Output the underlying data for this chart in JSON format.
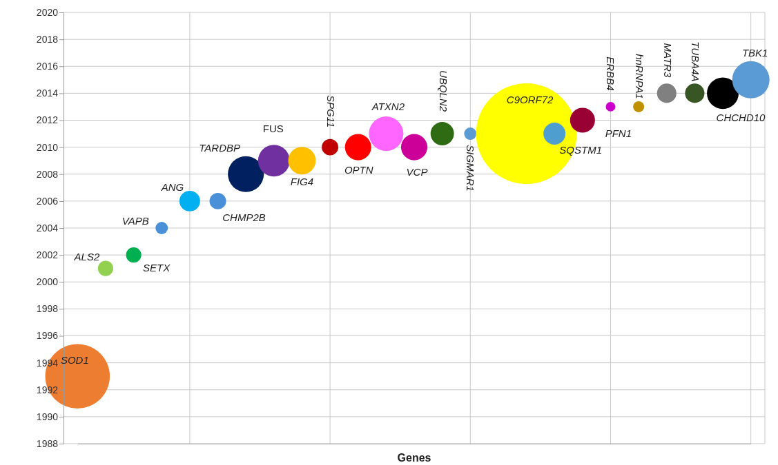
{
  "chart_data": {
    "type": "bubble",
    "xlabel": "Genes",
    "categories": [
      null,
      null,
      null,
      null,
      null,
      null,
      null,
      null,
      null,
      null,
      null,
      null,
      null,
      null,
      null,
      null,
      null,
      null,
      null,
      null,
      null,
      null,
      null,
      null,
      null
    ],
    "series": [
      {
        "name": "SOD1",
        "color": "#ed7d31",
        "values": [
          1993,
          null,
          null,
          null,
          null,
          null,
          null,
          null,
          null,
          null,
          null,
          null,
          null,
          null,
          null,
          null,
          null,
          null,
          null,
          null,
          null,
          null,
          null,
          null,
          null
        ],
        "sizes": [
          0.41,
          null,
          null,
          null,
          null,
          null,
          null,
          null,
          null,
          null,
          null,
          null,
          null,
          null,
          null,
          null,
          null,
          null,
          null,
          null,
          null,
          null,
          null,
          null,
          null
        ]
      },
      {
        "name": "ALS2",
        "color": "#92d050",
        "values": [
          null,
          2001,
          null,
          null,
          null,
          null,
          null,
          null,
          null,
          null,
          null,
          null,
          null,
          null,
          null,
          null,
          null,
          null,
          null,
          null,
          null,
          null,
          null,
          null,
          null
        ],
        "sizes": [
          null,
          0.023,
          null,
          null,
          null,
          null,
          null,
          null,
          null,
          null,
          null,
          null,
          null,
          null,
          null,
          null,
          null,
          null,
          null,
          null,
          null,
          null,
          null,
          null,
          null
        ]
      },
      {
        "name": "SETX",
        "color": "#00b050",
        "values": [
          null,
          null,
          2002,
          null,
          null,
          null,
          null,
          null,
          null,
          null,
          null,
          null,
          null,
          null,
          null,
          null,
          null,
          null,
          null,
          null,
          null,
          null,
          null,
          null,
          null
        ],
        "sizes": [
          null,
          null,
          0.023,
          null,
          null,
          null,
          null,
          null,
          null,
          null,
          null,
          null,
          null,
          null,
          null,
          null,
          null,
          null,
          null,
          null,
          null,
          null,
          null,
          null,
          null
        ]
      },
      {
        "name": "VAPB",
        "color": "#4a90d9",
        "values": [
          null,
          null,
          null,
          2004,
          null,
          null,
          null,
          null,
          null,
          null,
          null,
          null,
          null,
          null,
          null,
          null,
          null,
          null,
          null,
          null,
          null,
          null,
          null,
          null,
          null
        ],
        "sizes": [
          null,
          null,
          null,
          0.015,
          null,
          null,
          null,
          null,
          null,
          null,
          null,
          null,
          null,
          null,
          null,
          null,
          null,
          null,
          null,
          null,
          null,
          null,
          null,
          null,
          null
        ]
      },
      {
        "name": "ANG",
        "color": "#00b0f0",
        "values": [
          null,
          null,
          null,
          null,
          2006,
          null,
          null,
          null,
          null,
          null,
          null,
          null,
          null,
          null,
          null,
          null,
          null,
          null,
          null,
          null,
          null,
          null,
          null,
          null,
          null
        ],
        "sizes": [
          null,
          null,
          null,
          null,
          0.042,
          null,
          null,
          null,
          null,
          null,
          null,
          null,
          null,
          null,
          null,
          null,
          null,
          null,
          null,
          null,
          null,
          null,
          null,
          null,
          null
        ]
      },
      {
        "name": "CHMP2B",
        "color": "#4a90d9",
        "values": [
          null,
          null,
          null,
          null,
          null,
          2006,
          null,
          null,
          null,
          null,
          null,
          null,
          null,
          null,
          null,
          null,
          null,
          null,
          null,
          null,
          null,
          null,
          null,
          null,
          null
        ],
        "sizes": [
          null,
          null,
          null,
          null,
          null,
          0.027,
          null,
          null,
          null,
          null,
          null,
          null,
          null,
          null,
          null,
          null,
          null,
          null,
          null,
          null,
          null,
          null,
          null,
          null,
          null
        ]
      },
      {
        "name": "TARDBP",
        "color": "#002060",
        "values": [
          null,
          null,
          null,
          null,
          null,
          null,
          2008,
          null,
          null,
          null,
          null,
          null,
          null,
          null,
          null,
          null,
          null,
          null,
          null,
          null,
          null,
          null,
          null,
          null,
          null
        ],
        "sizes": [
          null,
          null,
          null,
          null,
          null,
          null,
          0.127,
          null,
          null,
          null,
          null,
          null,
          null,
          null,
          null,
          null,
          null,
          null,
          null,
          null,
          null,
          null,
          null,
          null,
          null
        ]
      },
      {
        "name": "FUS",
        "color": "#7030a0",
        "values": [
          null,
          null,
          null,
          null,
          null,
          null,
          null,
          2009,
          null,
          null,
          null,
          null,
          null,
          null,
          null,
          null,
          null,
          null,
          null,
          null,
          null,
          null,
          null,
          null,
          null
        ],
        "sizes": [
          null,
          null,
          null,
          null,
          null,
          null,
          null,
          0.099,
          null,
          null,
          null,
          null,
          null,
          null,
          null,
          null,
          null,
          null,
          null,
          null,
          null,
          null,
          null,
          null,
          null
        ]
      },
      {
        "name": "FIG4",
        "color": "#ffc000",
        "values": [
          null,
          null,
          null,
          null,
          null,
          null,
          null,
          null,
          2009,
          null,
          null,
          null,
          null,
          null,
          null,
          null,
          null,
          null,
          null,
          null,
          null,
          null,
          null,
          null,
          null
        ],
        "sizes": [
          null,
          null,
          null,
          null,
          null,
          null,
          null,
          null,
          0.075,
          null,
          null,
          null,
          null,
          null,
          null,
          null,
          null,
          null,
          null,
          null,
          null,
          null,
          null,
          null,
          null
        ]
      },
      {
        "name": "SPG11",
        "color": "#c00000",
        "values": [
          null,
          null,
          null,
          null,
          null,
          null,
          null,
          null,
          null,
          2010,
          null,
          null,
          null,
          null,
          null,
          null,
          null,
          null,
          null,
          null,
          null,
          null,
          null,
          null,
          null
        ],
        "sizes": [
          null,
          null,
          null,
          null,
          null,
          null,
          null,
          null,
          null,
          0.027,
          null,
          null,
          null,
          null,
          null,
          null,
          null,
          null,
          null,
          null,
          null,
          null,
          null,
          null,
          null
        ]
      },
      {
        "name": "OPTN",
        "color": "#ff0000",
        "values": [
          null,
          null,
          null,
          null,
          null,
          null,
          null,
          null,
          null,
          null,
          2010,
          null,
          null,
          null,
          null,
          null,
          null,
          null,
          null,
          null,
          null,
          null,
          null,
          null,
          null
        ],
        "sizes": [
          null,
          null,
          null,
          null,
          null,
          null,
          null,
          null,
          null,
          null,
          0.068,
          null,
          null,
          null,
          null,
          null,
          null,
          null,
          null,
          null,
          null,
          null,
          null,
          null,
          null
        ]
      },
      {
        "name": "ATXN2",
        "color": "#ff66ff",
        "values": [
          null,
          null,
          null,
          null,
          null,
          null,
          null,
          null,
          null,
          null,
          null,
          2011,
          null,
          null,
          null,
          null,
          null,
          null,
          null,
          null,
          null,
          null,
          null,
          null,
          null
        ],
        "sizes": [
          null,
          null,
          null,
          null,
          null,
          null,
          null,
          null,
          null,
          null,
          null,
          0.117,
          null,
          null,
          null,
          null,
          null,
          null,
          null,
          null,
          null,
          null,
          null,
          null,
          null
        ]
      },
      {
        "name": "VCP",
        "color": "#cc0099",
        "values": [
          null,
          null,
          null,
          null,
          null,
          null,
          null,
          null,
          null,
          null,
          null,
          null,
          2010,
          null,
          null,
          null,
          null,
          null,
          null,
          null,
          null,
          null,
          null,
          null,
          null
        ],
        "sizes": [
          null,
          null,
          null,
          null,
          null,
          null,
          null,
          null,
          null,
          null,
          null,
          null,
          0.068,
          null,
          null,
          null,
          null,
          null,
          null,
          null,
          null,
          null,
          null,
          null,
          null
        ]
      },
      {
        "name": "UBQLN2",
        "color": "#2e6b12",
        "values": [
          null,
          null,
          null,
          null,
          null,
          null,
          null,
          null,
          null,
          null,
          null,
          null,
          null,
          2011,
          null,
          null,
          null,
          null,
          null,
          null,
          null,
          null,
          null,
          null,
          null
        ],
        "sizes": [
          null,
          null,
          null,
          null,
          null,
          null,
          null,
          null,
          null,
          null,
          null,
          null,
          null,
          0.054,
          null,
          null,
          null,
          null,
          null,
          null,
          null,
          null,
          null,
          null,
          null
        ]
      },
      {
        "name": "SIGMAR1",
        "color": "#5b9bd5",
        "values": [
          null,
          null,
          null,
          null,
          null,
          null,
          null,
          null,
          null,
          null,
          null,
          null,
          null,
          null,
          2011,
          null,
          null,
          null,
          null,
          null,
          null,
          null,
          null,
          null,
          null
        ],
        "sizes": [
          null,
          null,
          null,
          null,
          null,
          null,
          null,
          null,
          null,
          null,
          null,
          null,
          null,
          null,
          0.015,
          null,
          null,
          null,
          null,
          null,
          null,
          null,
          null,
          null,
          null
        ]
      },
      {
        "name": "C9ORF72",
        "color": "#ffff00",
        "values": [
          null,
          null,
          null,
          null,
          null,
          null,
          null,
          null,
          null,
          null,
          null,
          null,
          null,
          null,
          null,
          null,
          2011,
          null,
          null,
          null,
          null,
          null,
          null,
          null,
          null
        ],
        "sizes": [
          null,
          null,
          null,
          null,
          null,
          null,
          null,
          null,
          null,
          null,
          null,
          null,
          null,
          null,
          null,
          null,
          1,
          null,
          null,
          null,
          null,
          null,
          null,
          null,
          null
        ]
      },
      {
        "name": "SQSTM1",
        "color": "#4f9ed0",
        "values": [
          null,
          null,
          null,
          null,
          null,
          null,
          null,
          null,
          null,
          null,
          null,
          null,
          null,
          null,
          null,
          null,
          null,
          2011,
          null,
          null,
          null,
          null,
          null,
          null,
          null
        ],
        "sizes": [
          null,
          null,
          null,
          null,
          null,
          null,
          null,
          null,
          null,
          null,
          null,
          null,
          null,
          null,
          null,
          null,
          null,
          0.048,
          null,
          null,
          null,
          null,
          null,
          null,
          null
        ]
      },
      {
        "name": "PFN1",
        "color": "#990033",
        "values": [
          null,
          null,
          null,
          null,
          null,
          null,
          null,
          null,
          null,
          null,
          null,
          null,
          null,
          null,
          null,
          null,
          null,
          null,
          2012,
          null,
          null,
          null,
          null,
          null,
          null
        ],
        "sizes": [
          null,
          null,
          null,
          null,
          null,
          null,
          null,
          null,
          null,
          null,
          null,
          null,
          null,
          null,
          null,
          null,
          null,
          null,
          0.061,
          null,
          null,
          null,
          null,
          null,
          null
        ]
      },
      {
        "name": "ERBB4",
        "color": "#cc00cc",
        "values": [
          null,
          null,
          null,
          null,
          null,
          null,
          null,
          null,
          null,
          null,
          null,
          null,
          null,
          null,
          null,
          null,
          null,
          null,
          null,
          2013,
          null,
          null,
          null,
          null,
          null
        ],
        "sizes": [
          null,
          null,
          null,
          null,
          null,
          null,
          null,
          null,
          null,
          null,
          null,
          null,
          null,
          null,
          null,
          null,
          null,
          null,
          null,
          0.009,
          null,
          null,
          null,
          null,
          null
        ]
      },
      {
        "name": "hnRNPA1",
        "color": "#bf9000",
        "values": [
          null,
          null,
          null,
          null,
          null,
          null,
          null,
          null,
          null,
          null,
          null,
          null,
          null,
          null,
          null,
          null,
          null,
          null,
          null,
          null,
          2013,
          null,
          null,
          null,
          null
        ],
        "sizes": [
          null,
          null,
          null,
          null,
          null,
          null,
          null,
          null,
          null,
          null,
          null,
          null,
          null,
          null,
          null,
          null,
          null,
          null,
          null,
          null,
          0.012,
          null,
          null,
          null,
          null
        ]
      },
      {
        "name": "MATR3",
        "color": "#808080",
        "values": [
          null,
          null,
          null,
          null,
          null,
          null,
          null,
          null,
          null,
          null,
          null,
          null,
          null,
          null,
          null,
          null,
          null,
          null,
          null,
          null,
          null,
          2014,
          null,
          null,
          null
        ],
        "sizes": [
          null,
          null,
          null,
          null,
          null,
          null,
          null,
          null,
          null,
          null,
          null,
          null,
          null,
          null,
          null,
          null,
          null,
          null,
          null,
          null,
          null,
          0.037,
          null,
          null,
          null
        ]
      },
      {
        "name": "TUBA4A",
        "color": "#375623",
        "values": [
          null,
          null,
          null,
          null,
          null,
          null,
          null,
          null,
          null,
          null,
          null,
          null,
          null,
          null,
          null,
          null,
          null,
          null,
          null,
          null,
          null,
          null,
          2014,
          null,
          null
        ],
        "sizes": [
          null,
          null,
          null,
          null,
          null,
          null,
          null,
          null,
          null,
          null,
          null,
          null,
          null,
          null,
          null,
          null,
          null,
          null,
          null,
          null,
          null,
          null,
          0.037,
          null,
          null
        ]
      },
      {
        "name": "CHCHD10",
        "color": "#000000",
        "values": [
          null,
          null,
          null,
          null,
          null,
          null,
          null,
          null,
          null,
          null,
          null,
          null,
          null,
          null,
          null,
          null,
          null,
          null,
          null,
          null,
          null,
          null,
          null,
          2014,
          null
        ],
        "sizes": [
          null,
          null,
          null,
          null,
          null,
          null,
          null,
          null,
          null,
          null,
          null,
          null,
          null,
          null,
          null,
          null,
          null,
          null,
          null,
          null,
          null,
          null,
          null,
          0.099,
          null
        ]
      },
      {
        "name": "TBK1",
        "color": "#5b9bd5",
        "values": [
          null,
          null,
          null,
          null,
          null,
          null,
          null,
          null,
          null,
          null,
          null,
          null,
          null,
          null,
          null,
          null,
          null,
          null,
          null,
          null,
          null,
          null,
          null,
          null,
          2015
        ],
        "sizes": [
          null,
          null,
          null,
          null,
          null,
          null,
          null,
          null,
          null,
          null,
          null,
          null,
          null,
          null,
          null,
          null,
          null,
          null,
          null,
          null,
          null,
          null,
          null,
          null,
          0.137
        ]
      }
    ],
    "ylim": [
      1988,
      2020
    ],
    "yticks": [
      1988,
      1990,
      1992,
      1994,
      1996,
      1998,
      2000,
      2002,
      2004,
      2006,
      2008,
      2010,
      2012,
      2014,
      2016,
      2018,
      2020
    ],
    "grid": true,
    "tick_labels": "y"
  }
}
